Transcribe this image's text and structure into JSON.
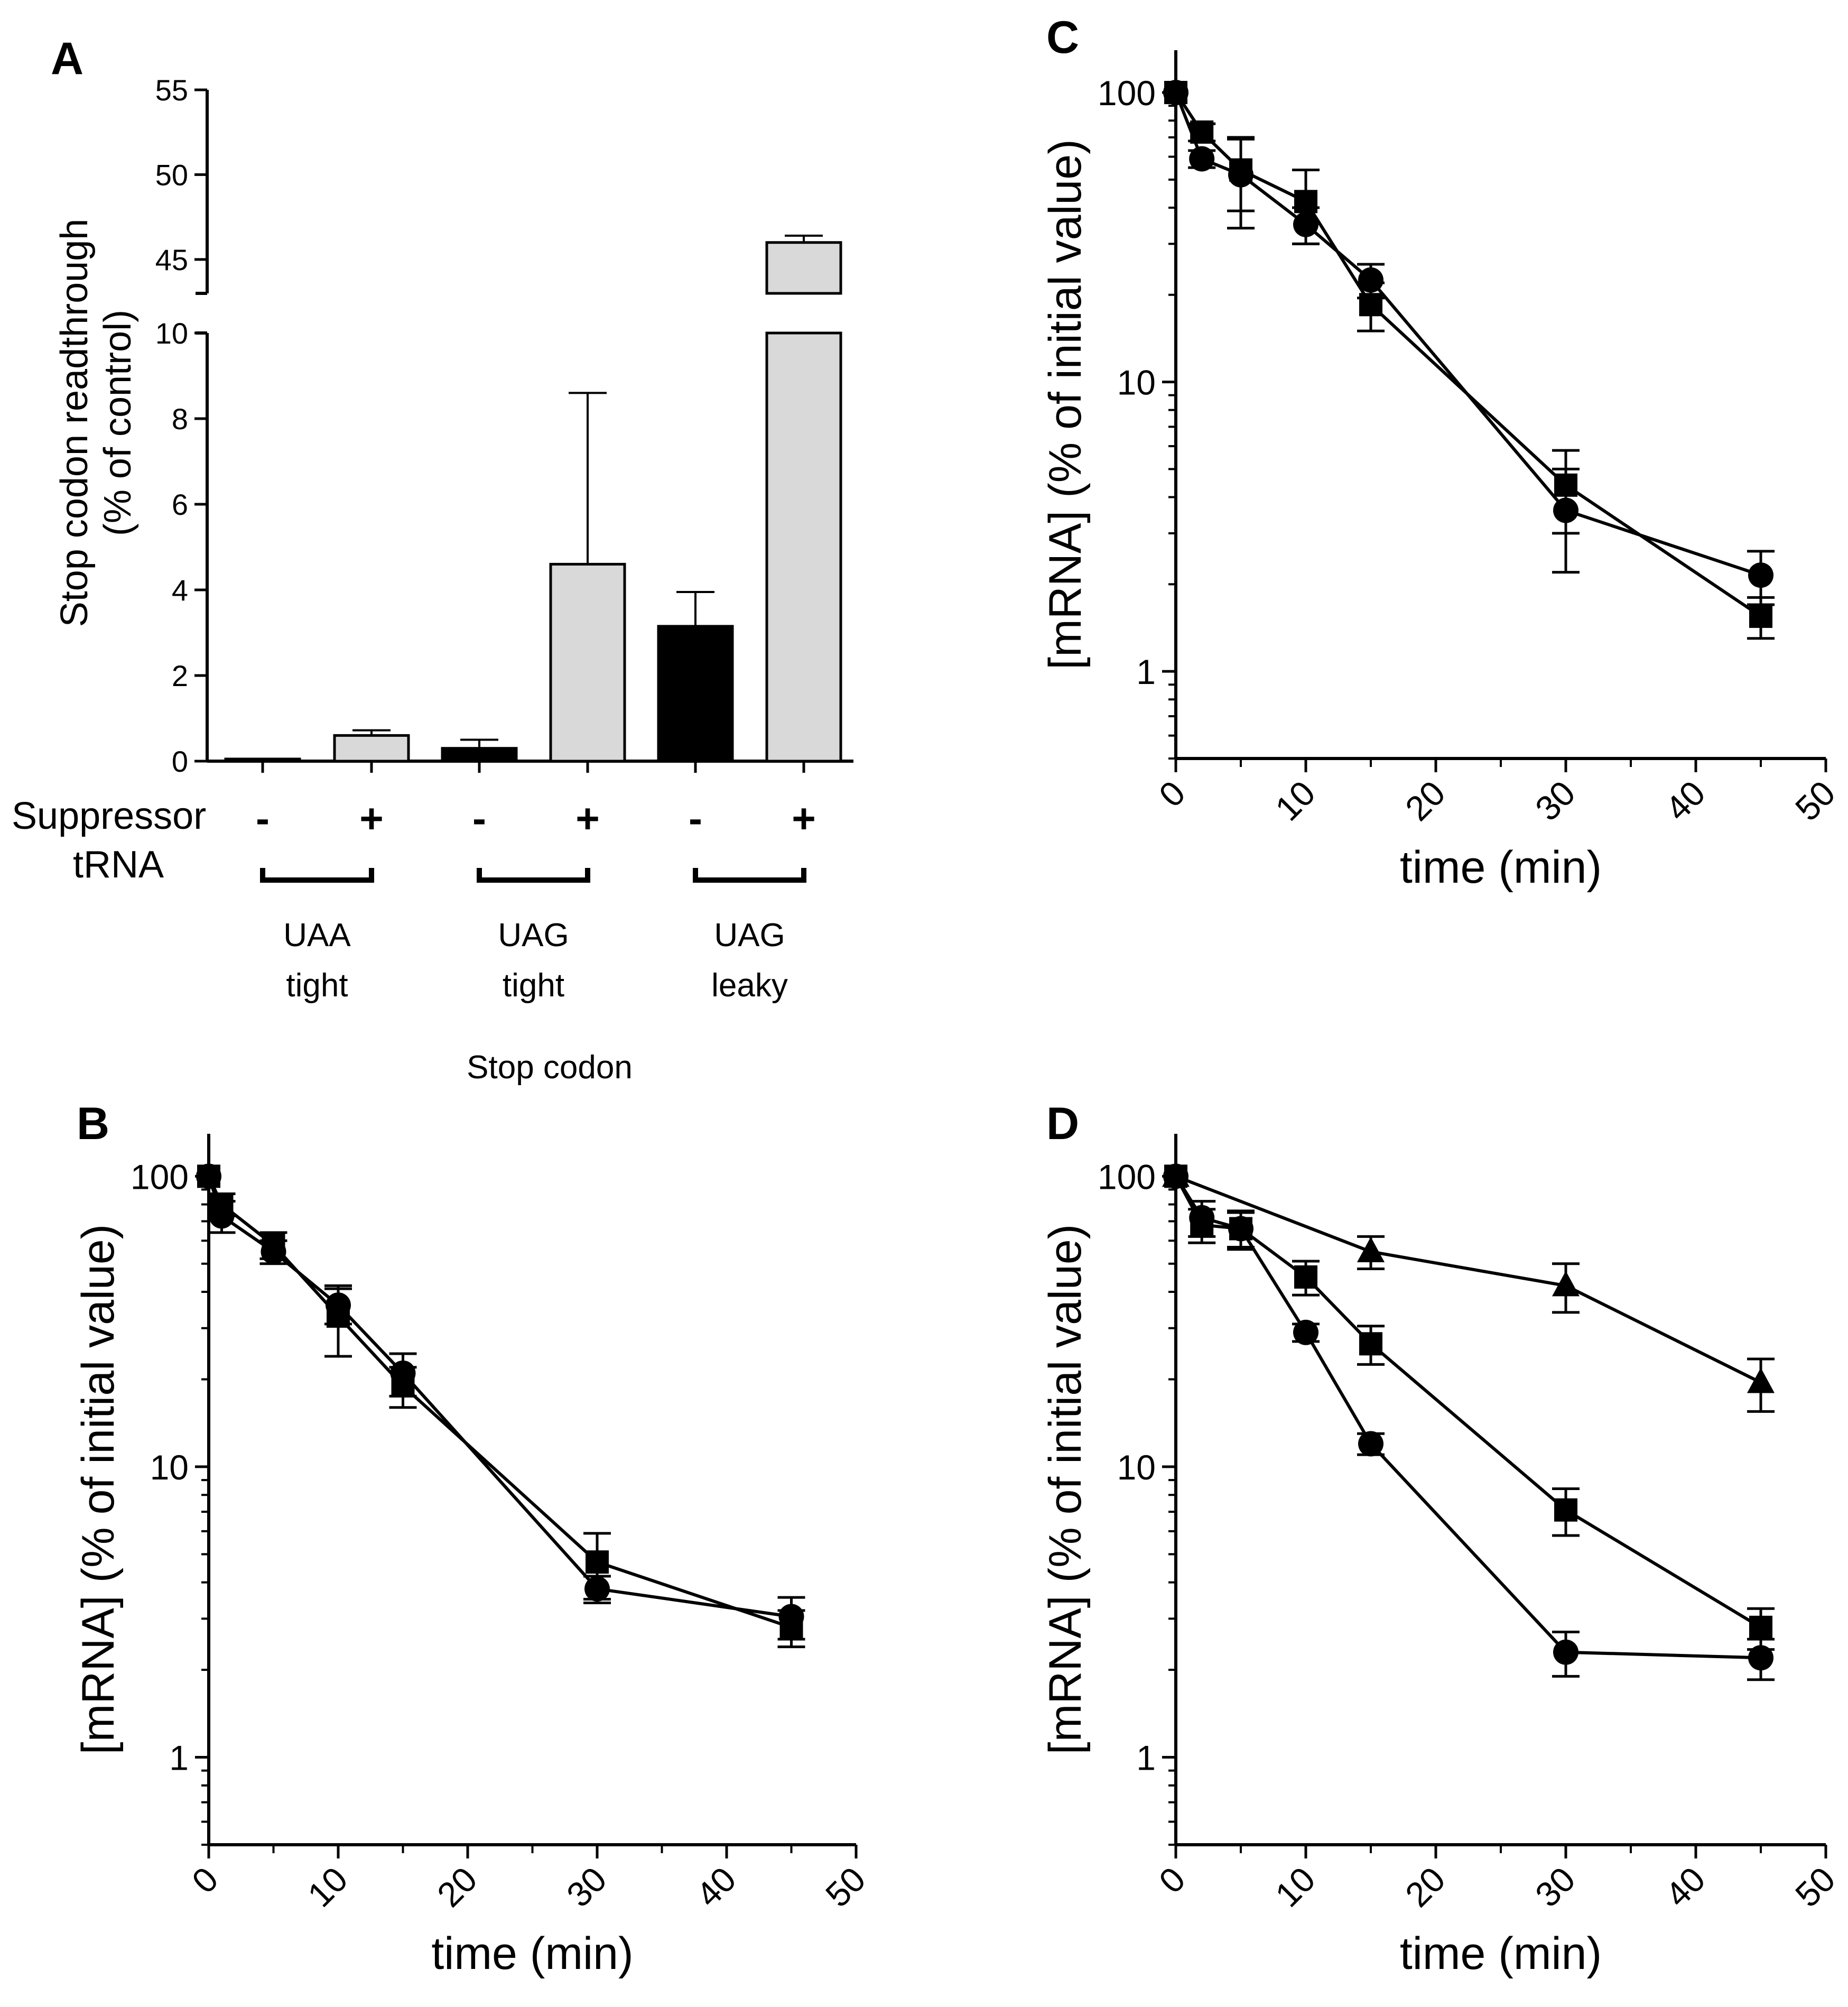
{
  "chart_data": [
    {
      "panel": "A",
      "type": "bar",
      "ylabel": "Stop codon readthrough\n(% of control)",
      "xlabel": "Stop codon",
      "row_label": "Suppressor\ntRNA",
      "axis_break": {
        "lower": [
          0,
          10
        ],
        "upper": [
          43,
          55
        ]
      },
      "yticks_lower": [
        "0",
        "2",
        "4",
        "6",
        "8",
        "10"
      ],
      "yticks_upper": [
        "45",
        "50",
        "55"
      ],
      "groups": [
        {
          "line1": "UAA",
          "line2": "tight"
        },
        {
          "line1": "UAG",
          "line2": "tight"
        },
        {
          "line1": "UAG",
          "line2": "leaky"
        }
      ],
      "bars": [
        {
          "group": 0,
          "sign": "-",
          "value": 0.05,
          "error": 0.0,
          "fill": "#000000"
        },
        {
          "group": 0,
          "sign": "+",
          "value": 0.6,
          "error": 0.12,
          "fill": "#d9d9d9"
        },
        {
          "group": 1,
          "sign": "-",
          "value": 0.3,
          "error": 0.2,
          "fill": "#000000"
        },
        {
          "group": 1,
          "sign": "+",
          "value": 4.6,
          "error": 4.0,
          "fill": "#d9d9d9"
        },
        {
          "group": 2,
          "sign": "-",
          "value": 3.15,
          "error": 0.8,
          "fill": "#000000"
        },
        {
          "group": 2,
          "sign": "+",
          "value": 46.0,
          "error": 0.4,
          "fill": "#d9d9d9"
        }
      ]
    },
    {
      "panel": "B",
      "type": "line",
      "yscale": "log",
      "ylim": [
        0.5,
        140
      ],
      "xlim": [
        0,
        50
      ],
      "xlabel": "time (min)",
      "ylabel": "[mRNA] (% of initial value)",
      "xticks": [
        "0",
        "10",
        "20",
        "30",
        "40",
        "50"
      ],
      "yticks": [
        "1",
        "10",
        "100"
      ],
      "series": [
        {
          "name": "circle",
          "marker": "circle",
          "x": [
            0,
            1,
            5,
            10,
            15,
            30,
            45
          ],
          "y": [
            100,
            73,
            55,
            36,
            21,
            3.8,
            3.05
          ],
          "err": [
            0,
            9,
            5,
            5,
            3.5,
            0.4,
            0.5
          ]
        },
        {
          "name": "square",
          "marker": "square",
          "x": [
            0,
            1,
            5,
            10,
            15,
            30,
            45
          ],
          "y": [
            100,
            80,
            58,
            33,
            19,
            4.7,
            2.8
          ],
          "err": [
            0,
            7,
            6,
            9,
            3,
            1.2,
            0.4
          ]
        }
      ]
    },
    {
      "panel": "C",
      "type": "line",
      "yscale": "log",
      "ylim": [
        0.5,
        140
      ],
      "xlim": [
        0,
        50
      ],
      "xlabel": "time (min)",
      "ylabel": "[mRNA] (% of initial value)",
      "xticks": [
        "0",
        "10",
        "20",
        "30",
        "40",
        "50"
      ],
      "yticks": [
        "1",
        "10",
        "100"
      ],
      "series": [
        {
          "name": "circle",
          "marker": "circle",
          "x": [
            0,
            2,
            5,
            10,
            15,
            30,
            45
          ],
          "y": [
            100,
            59,
            52,
            35,
            22.5,
            3.6,
            2.15
          ],
          "err": [
            0,
            4,
            18,
            5,
            3,
            1.4,
            0.45
          ]
        },
        {
          "name": "square",
          "marker": "square",
          "x": [
            0,
            2,
            5,
            10,
            15,
            30,
            45
          ],
          "y": [
            100,
            73,
            54,
            42,
            18.5,
            4.4,
            1.55
          ],
          "err": [
            0,
            5,
            15,
            12,
            3.5,
            1.4,
            0.25
          ]
        }
      ]
    },
    {
      "panel": "D",
      "type": "line",
      "yscale": "log",
      "ylim": [
        0.5,
        140
      ],
      "xlim": [
        0,
        50
      ],
      "xlabel": "time (min)",
      "ylabel": "[mRNA] (% of initial value)",
      "xticks": [
        "0",
        "10",
        "20",
        "30",
        "40",
        "50"
      ],
      "yticks": [
        "1",
        "10",
        "100"
      ],
      "series": [
        {
          "name": "circle",
          "marker": "circle",
          "x": [
            0,
            2,
            5,
            10,
            15,
            30,
            45
          ],
          "y": [
            100,
            72,
            66,
            29,
            12,
            2.3,
            2.2
          ],
          "err": [
            0,
            10,
            9,
            2,
            1,
            0.4,
            0.35
          ]
        },
        {
          "name": "square",
          "marker": "square",
          "x": [
            0,
            2,
            5,
            10,
            15,
            30,
            45
          ],
          "y": [
            100,
            68,
            66,
            45,
            26.5,
            7.1,
            2.8
          ],
          "err": [
            0,
            9,
            10,
            6,
            4,
            1.3,
            0.45
          ]
        },
        {
          "name": "triangle",
          "marker": "triangle",
          "x": [
            0,
            15,
            30,
            45
          ],
          "y": [
            100,
            55,
            42,
            19.5
          ],
          "err": [
            0,
            7,
            8,
            4
          ]
        }
      ]
    }
  ]
}
